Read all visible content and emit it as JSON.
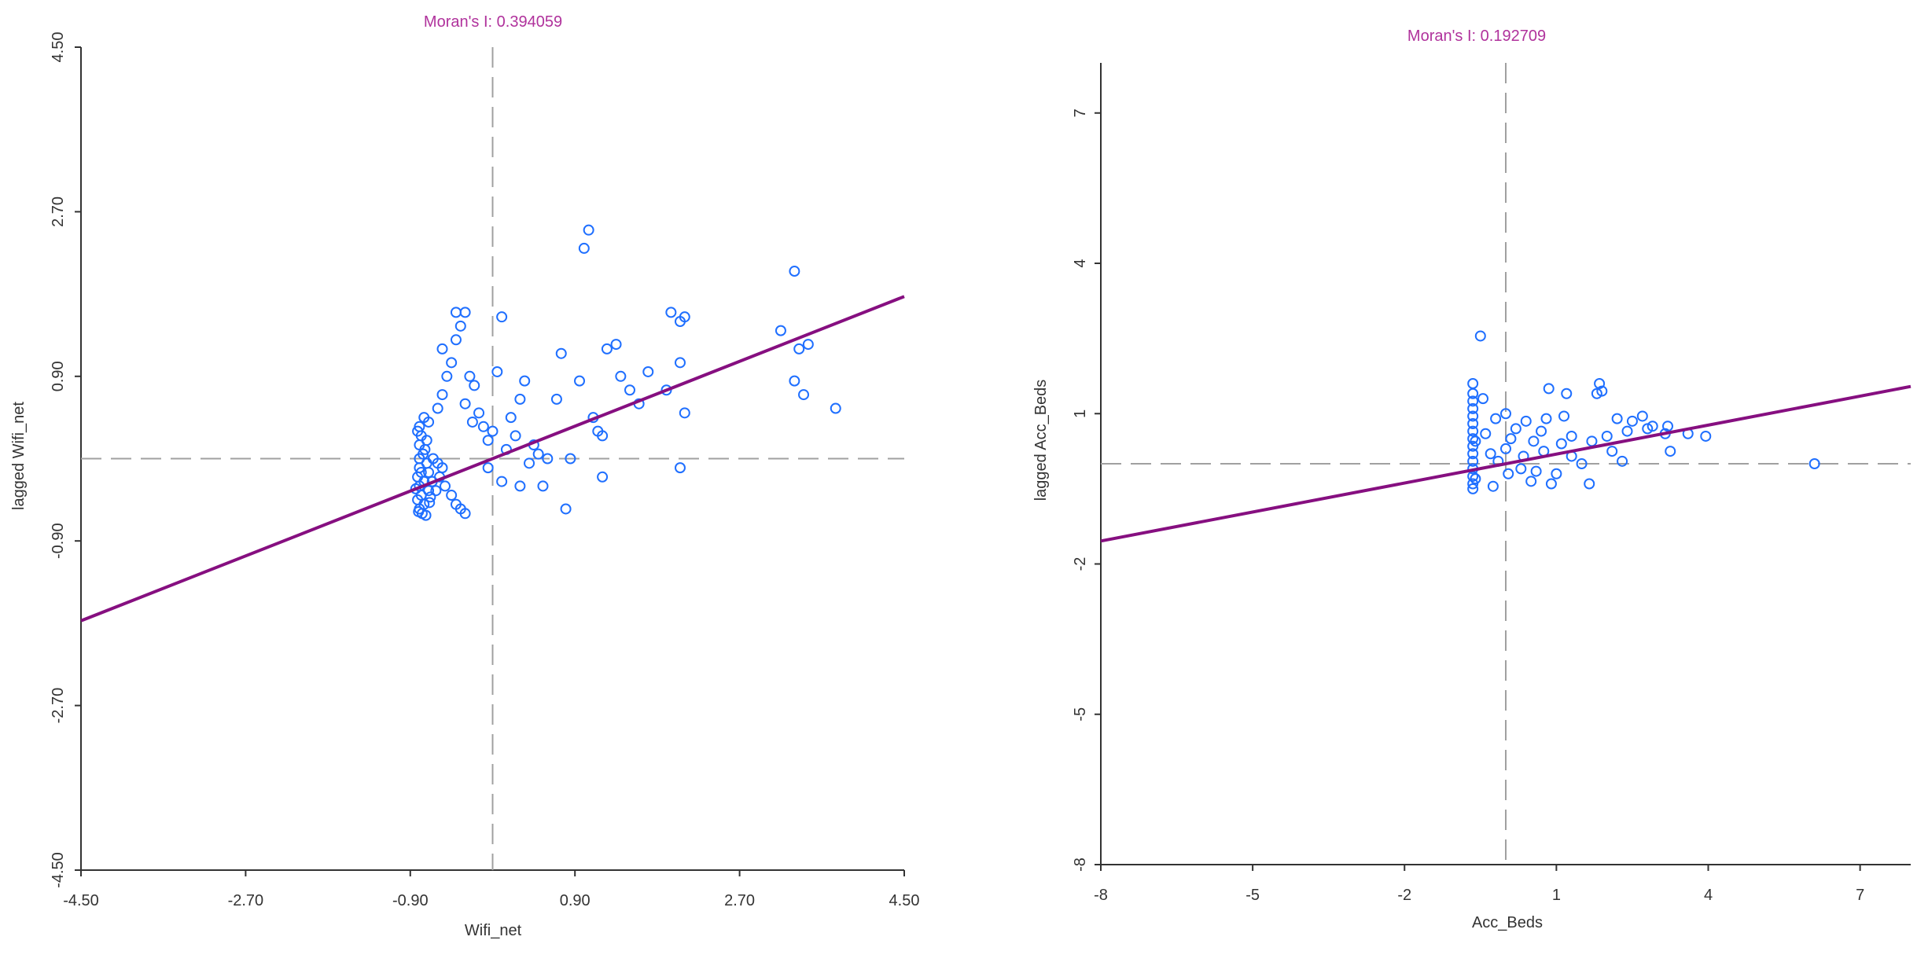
{
  "chart_data": [
    {
      "type": "scatter",
      "title": "Moran's I: 0.394059",
      "xlabel": "Wifi_net",
      "ylabel": "lagged Wifi_net",
      "xlim": [
        -4.5,
        4.5
      ],
      "ylim": [
        -4.5,
        4.5
      ],
      "xticks": [
        "-4.50",
        "-2.70",
        "-0.90",
        "0.90",
        "2.70",
        "4.50"
      ],
      "xtick_values": [
        -4.5,
        -2.7,
        -0.9,
        0.9,
        2.7,
        4.5
      ],
      "yticks": [
        "-4.50",
        "-2.70",
        "-0.90",
        "0.90",
        "2.70",
        "4.50"
      ],
      "ytick_values": [
        -4.5,
        -2.7,
        -0.9,
        0.9,
        2.7,
        4.5
      ],
      "grid": false,
      "ref_lines": {
        "x": 0,
        "y": 0
      },
      "regression": {
        "slope": 0.394059,
        "intercept": 0.0
      },
      "points": [
        [
          -0.8,
          0.35
        ],
        [
          -0.78,
          0.25
        ],
        [
          -0.75,
          0.45
        ],
        [
          -0.82,
          0.3
        ],
        [
          -0.7,
          0.4
        ],
        [
          -0.72,
          0.2
        ],
        [
          -0.8,
          0.15
        ],
        [
          -0.76,
          0.05
        ],
        [
          -0.8,
          0.0
        ],
        [
          -0.72,
          -0.05
        ],
        [
          -0.8,
          -0.1
        ],
        [
          -0.78,
          -0.15
        ],
        [
          -0.82,
          -0.2
        ],
        [
          -0.75,
          -0.25
        ],
        [
          -0.8,
          -0.3
        ],
        [
          -0.7,
          -0.35
        ],
        [
          -0.78,
          -0.4
        ],
        [
          -0.82,
          -0.45
        ],
        [
          -0.75,
          -0.5
        ],
        [
          -0.8,
          -0.55
        ],
        [
          -0.77,
          -0.6
        ],
        [
          -0.73,
          -0.62
        ],
        [
          -0.81,
          -0.58
        ],
        [
          -0.69,
          -0.48
        ],
        [
          -0.7,
          -0.15
        ],
        [
          -0.66,
          -0.25
        ],
        [
          -0.62,
          -0.35
        ],
        [
          -0.6,
          -0.05
        ],
        [
          -0.65,
          0.0
        ],
        [
          -0.55,
          -0.1
        ],
        [
          -0.58,
          -0.2
        ],
        [
          -0.52,
          -0.3
        ],
        [
          -0.45,
          -0.4
        ],
        [
          -0.4,
          -0.5
        ],
        [
          -0.35,
          -0.55
        ],
        [
          -0.3,
          -0.6
        ],
        [
          -0.6,
          0.55
        ],
        [
          -0.55,
          0.7
        ],
        [
          -0.5,
          0.9
        ],
        [
          -0.45,
          1.05
        ],
        [
          -0.55,
          1.2
        ],
        [
          -0.4,
          1.3
        ],
        [
          -0.35,
          1.45
        ],
        [
          -0.4,
          1.6
        ],
        [
          -0.3,
          1.6
        ],
        [
          -0.25,
          0.9
        ],
        [
          -0.2,
          0.8
        ],
        [
          -0.3,
          0.6
        ],
        [
          -0.22,
          0.4
        ],
        [
          -0.15,
          0.5
        ],
        [
          -0.1,
          0.35
        ],
        [
          -0.05,
          0.2
        ],
        [
          0.05,
          0.95
        ],
        [
          0.1,
          1.55
        ],
        [
          0.1,
          -0.25
        ],
        [
          -0.05,
          -0.1
        ],
        [
          0.0,
          0.3
        ],
        [
          0.15,
          0.1
        ],
        [
          0.2,
          0.45
        ],
        [
          0.25,
          0.25
        ],
        [
          0.3,
          0.65
        ],
        [
          0.35,
          0.85
        ],
        [
          0.4,
          -0.05
        ],
        [
          0.3,
          -0.3
        ],
        [
          0.45,
          0.15
        ],
        [
          0.5,
          0.05
        ],
        [
          0.55,
          -0.3
        ],
        [
          0.6,
          0.0
        ],
        [
          0.7,
          0.65
        ],
        [
          0.75,
          1.15
        ],
        [
          0.8,
          -0.55
        ],
        [
          0.85,
          0.0
        ],
        [
          0.95,
          0.85
        ],
        [
          1.0,
          2.3
        ],
        [
          1.05,
          2.5
        ],
        [
          1.1,
          0.45
        ],
        [
          1.15,
          0.3
        ],
        [
          1.2,
          0.25
        ],
        [
          1.2,
          -0.2
        ],
        [
          1.25,
          1.2
        ],
        [
          1.35,
          1.25
        ],
        [
          1.4,
          0.9
        ],
        [
          1.5,
          0.75
        ],
        [
          1.6,
          0.6
        ],
        [
          1.7,
          0.95
        ],
        [
          1.9,
          0.75
        ],
        [
          1.95,
          1.6
        ],
        [
          2.05,
          1.5
        ],
        [
          2.1,
          1.55
        ],
        [
          2.05,
          1.05
        ],
        [
          2.05,
          -0.1
        ],
        [
          2.1,
          0.5
        ],
        [
          3.15,
          1.4
        ],
        [
          3.3,
          2.05
        ],
        [
          3.3,
          0.85
        ],
        [
          3.35,
          1.2
        ],
        [
          3.45,
          1.25
        ],
        [
          3.4,
          0.7
        ],
        [
          3.75,
          0.55
        ],
        [
          -0.74,
          0.1
        ],
        [
          -0.68,
          -0.42
        ],
        [
          -0.84,
          -0.33
        ]
      ]
    },
    {
      "type": "scatter",
      "title": "Moran's I: 0.192709",
      "xlabel": "Acc_Beds",
      "ylabel": "lagged Acc_Beds",
      "xlim": [
        -8,
        8
      ],
      "ylim": [
        -8,
        8
      ],
      "xticks": [
        "-8",
        "-5",
        "-2",
        "1",
        "4",
        "7"
      ],
      "xtick_values": [
        -8,
        -5,
        -2,
        1,
        4,
        7
      ],
      "yticks": [
        "-8",
        "-5",
        "-2",
        "1",
        "4",
        "7"
      ],
      "ytick_values": [
        -8,
        -5,
        -2,
        1,
        4,
        7
      ],
      "grid": false,
      "ref_lines": {
        "x": 0,
        "y": 0
      },
      "regression": {
        "slope": 0.192709,
        "intercept": 0.0
      },
      "points": [
        [
          -0.65,
          1.6
        ],
        [
          -0.65,
          1.4
        ],
        [
          -0.65,
          1.25
        ],
        [
          -0.65,
          1.1
        ],
        [
          -0.65,
          0.95
        ],
        [
          -0.65,
          0.8
        ],
        [
          -0.65,
          0.65
        ],
        [
          -0.65,
          0.5
        ],
        [
          -0.65,
          0.35
        ],
        [
          -0.65,
          0.2
        ],
        [
          -0.65,
          0.05
        ],
        [
          -0.65,
          -0.1
        ],
        [
          -0.65,
          -0.25
        ],
        [
          -0.65,
          -0.4
        ],
        [
          -0.65,
          -0.5
        ],
        [
          -0.6,
          0.45
        ],
        [
          -0.6,
          -0.3
        ],
        [
          -0.5,
          2.55
        ],
        [
          -0.45,
          1.3
        ],
        [
          -0.4,
          0.6
        ],
        [
          -0.3,
          0.2
        ],
        [
          -0.25,
          -0.45
        ],
        [
          -0.2,
          0.9
        ],
        [
          -0.15,
          0.05
        ],
        [
          0.0,
          0.3
        ],
        [
          0.0,
          1.0
        ],
        [
          0.05,
          -0.2
        ],
        [
          0.1,
          0.5
        ],
        [
          0.2,
          0.7
        ],
        [
          0.3,
          -0.1
        ],
        [
          0.35,
          0.15
        ],
        [
          0.4,
          0.85
        ],
        [
          0.5,
          -0.35
        ],
        [
          0.55,
          0.45
        ],
        [
          0.6,
          -0.15
        ],
        [
          0.7,
          0.65
        ],
        [
          0.75,
          0.25
        ],
        [
          0.8,
          0.9
        ],
        [
          0.85,
          1.5
        ],
        [
          0.9,
          -0.4
        ],
        [
          1.0,
          -0.2
        ],
        [
          1.1,
          0.4
        ],
        [
          1.15,
          0.95
        ],
        [
          1.2,
          1.4
        ],
        [
          1.3,
          0.55
        ],
        [
          1.3,
          0.15
        ],
        [
          1.5,
          0.0
        ],
        [
          1.65,
          -0.4
        ],
        [
          1.7,
          0.45
        ],
        [
          1.8,
          1.4
        ],
        [
          1.85,
          1.6
        ],
        [
          1.9,
          1.45
        ],
        [
          2.0,
          0.55
        ],
        [
          2.1,
          0.25
        ],
        [
          2.2,
          0.9
        ],
        [
          2.3,
          0.05
        ],
        [
          2.4,
          0.65
        ],
        [
          2.5,
          0.85
        ],
        [
          2.7,
          0.95
        ],
        [
          2.8,
          0.7
        ],
        [
          2.9,
          0.75
        ],
        [
          3.15,
          0.6
        ],
        [
          3.2,
          0.75
        ],
        [
          3.25,
          0.25
        ],
        [
          3.6,
          0.6
        ],
        [
          3.95,
          0.55
        ],
        [
          6.1,
          0.0
        ]
      ]
    }
  ]
}
